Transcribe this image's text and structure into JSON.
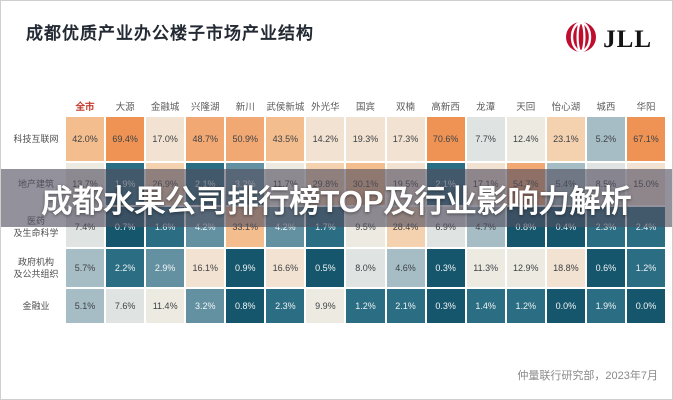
{
  "page": {
    "title": "成都优质产业办公楼子市场产业结构",
    "logo_text": "JLL",
    "overlay_headline": "成都水果公司排行榜TOP及行业影响力解析",
    "source_note": "仲量联行研究部，2023年7月"
  },
  "colors": {
    "brand_red": "#bf0d2e",
    "header_highlight": "#c0392b",
    "overlay_bg": "rgba(80,78,94,0.62)",
    "scale": [
      {
        "max": 1.0,
        "bg": "#15566c",
        "fg": "#f2f5f5"
      },
      {
        "max": 2.5,
        "bg": "#2b6d82",
        "fg": "#eef3f3"
      },
      {
        "max": 4.5,
        "bg": "#6391a1",
        "fg": "#f4f6f6"
      },
      {
        "max": 6.2,
        "bg": "#a6bdc5",
        "fg": "#3e4246"
      },
      {
        "max": 9.0,
        "bg": "#dfe3e1",
        "fg": "#3e4246"
      },
      {
        "max": 14.0,
        "bg": "#edeae1",
        "fg": "#3e4246"
      },
      {
        "max": 20.0,
        "bg": "#f2e2d1",
        "fg": "#3e4246"
      },
      {
        "max": 30.0,
        "bg": "#f4d2b0",
        "fg": "#3e4246"
      },
      {
        "max": 45.0,
        "bg": "#f4bd8e",
        "fg": "#3e4246"
      },
      {
        "max": 60.0,
        "bg": "#f2a873",
        "fg": "#3e4246"
      },
      {
        "max": 101,
        "bg": "#ef9355",
        "fg": "#3e4246"
      }
    ]
  },
  "chart_data": {
    "type": "heatmap",
    "title": "成都优质产业办公楼子市场产业结构",
    "value_unit": "%",
    "legend": "none",
    "highlight_column": "全市",
    "columns": [
      "全市",
      "大源",
      "金融城",
      "兴隆湖",
      "新川",
      "武侯新城",
      "外光华",
      "国宾",
      "双楠",
      "高新西",
      "龙潭",
      "天回",
      "怡心湖",
      "城西",
      "华阳"
    ],
    "rows": [
      {
        "label": "科技互联网",
        "values": [
          42.0,
          69.4,
          17.0,
          48.7,
          50.9,
          43.5,
          14.2,
          19.3,
          17.3,
          70.6,
          7.7,
          12.4,
          23.1,
          5.2,
          67.1
        ]
      },
      {
        "label": "地产建筑",
        "values": [
          13.7,
          1.9,
          26.9,
          2.1,
          3.2,
          11.7,
          29.8,
          30.1,
          19.5,
          2.1,
          17.1,
          54.7,
          5.4,
          8.5,
          15.0
        ]
      },
      {
        "label": "医药\n及生命科学",
        "values": [
          7.4,
          0.7,
          1.6,
          4.2,
          33.1,
          4.2,
          1.7,
          9.5,
          28.4,
          6.9,
          4.7,
          0.8,
          0.4,
          2.3,
          2.4
        ]
      },
      {
        "label": "政府机构\n及公共组织",
        "values": [
          5.7,
          2.2,
          2.9,
          16.1,
          0.9,
          16.6,
          0.5,
          8.0,
          4.6,
          0.3,
          11.3,
          12.9,
          18.8,
          0.6,
          1.2
        ]
      },
      {
        "label": "金融业",
        "values": [
          5.1,
          7.6,
          11.4,
          3.2,
          0.8,
          2.3,
          9.9,
          1.2,
          2.1,
          0.3,
          1.4,
          1.2,
          0.0,
          1.9,
          0.0
        ]
      }
    ]
  }
}
